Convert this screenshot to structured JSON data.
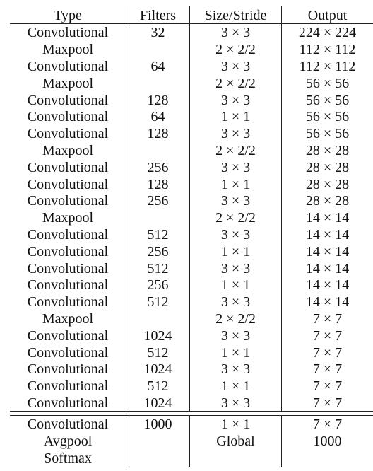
{
  "table": {
    "headers": [
      "Type",
      "Filters",
      "Size/Stride",
      "Output"
    ],
    "rows": [
      [
        "Convolutional",
        "32",
        "3 × 3",
        "224 × 224"
      ],
      [
        "Maxpool",
        "",
        "2 × 2/2",
        "112 × 112"
      ],
      [
        "Convolutional",
        "64",
        "3 × 3",
        "112 × 112"
      ],
      [
        "Maxpool",
        "",
        "2 × 2/2",
        "56 × 56"
      ],
      [
        "Convolutional",
        "128",
        "3 × 3",
        "56 × 56"
      ],
      [
        "Convolutional",
        "64",
        "1 × 1",
        "56 × 56"
      ],
      [
        "Convolutional",
        "128",
        "3 × 3",
        "56 × 56"
      ],
      [
        "Maxpool",
        "",
        "2 × 2/2",
        "28 × 28"
      ],
      [
        "Convolutional",
        "256",
        "3 × 3",
        "28 × 28"
      ],
      [
        "Convolutional",
        "128",
        "1 × 1",
        "28 × 28"
      ],
      [
        "Convolutional",
        "256",
        "3 × 3",
        "28 × 28"
      ],
      [
        "Maxpool",
        "",
        "2 × 2/2",
        "14 × 14"
      ],
      [
        "Convolutional",
        "512",
        "3 × 3",
        "14 × 14"
      ],
      [
        "Convolutional",
        "256",
        "1 × 1",
        "14 × 14"
      ],
      [
        "Convolutional",
        "512",
        "3 × 3",
        "14 × 14"
      ],
      [
        "Convolutional",
        "256",
        "1 × 1",
        "14 × 14"
      ],
      [
        "Convolutional",
        "512",
        "3 × 3",
        "14 × 14"
      ],
      [
        "Maxpool",
        "",
        "2 × 2/2",
        "7 × 7"
      ],
      [
        "Convolutional",
        "1024",
        "3 × 3",
        "7 × 7"
      ],
      [
        "Convolutional",
        "512",
        "1 × 1",
        "7 × 7"
      ],
      [
        "Convolutional",
        "1024",
        "3 × 3",
        "7 × 7"
      ],
      [
        "Convolutional",
        "512",
        "1 × 1",
        "7 × 7"
      ],
      [
        "Convolutional",
        "1024",
        "3 × 3",
        "7 × 7"
      ]
    ],
    "footer_rows": [
      [
        "Convolutional",
        "1000",
        "1 × 1",
        "7 × 7"
      ],
      [
        "Avgpool",
        "",
        "Global",
        "1000"
      ],
      [
        "Softmax",
        "",
        "",
        ""
      ]
    ]
  }
}
